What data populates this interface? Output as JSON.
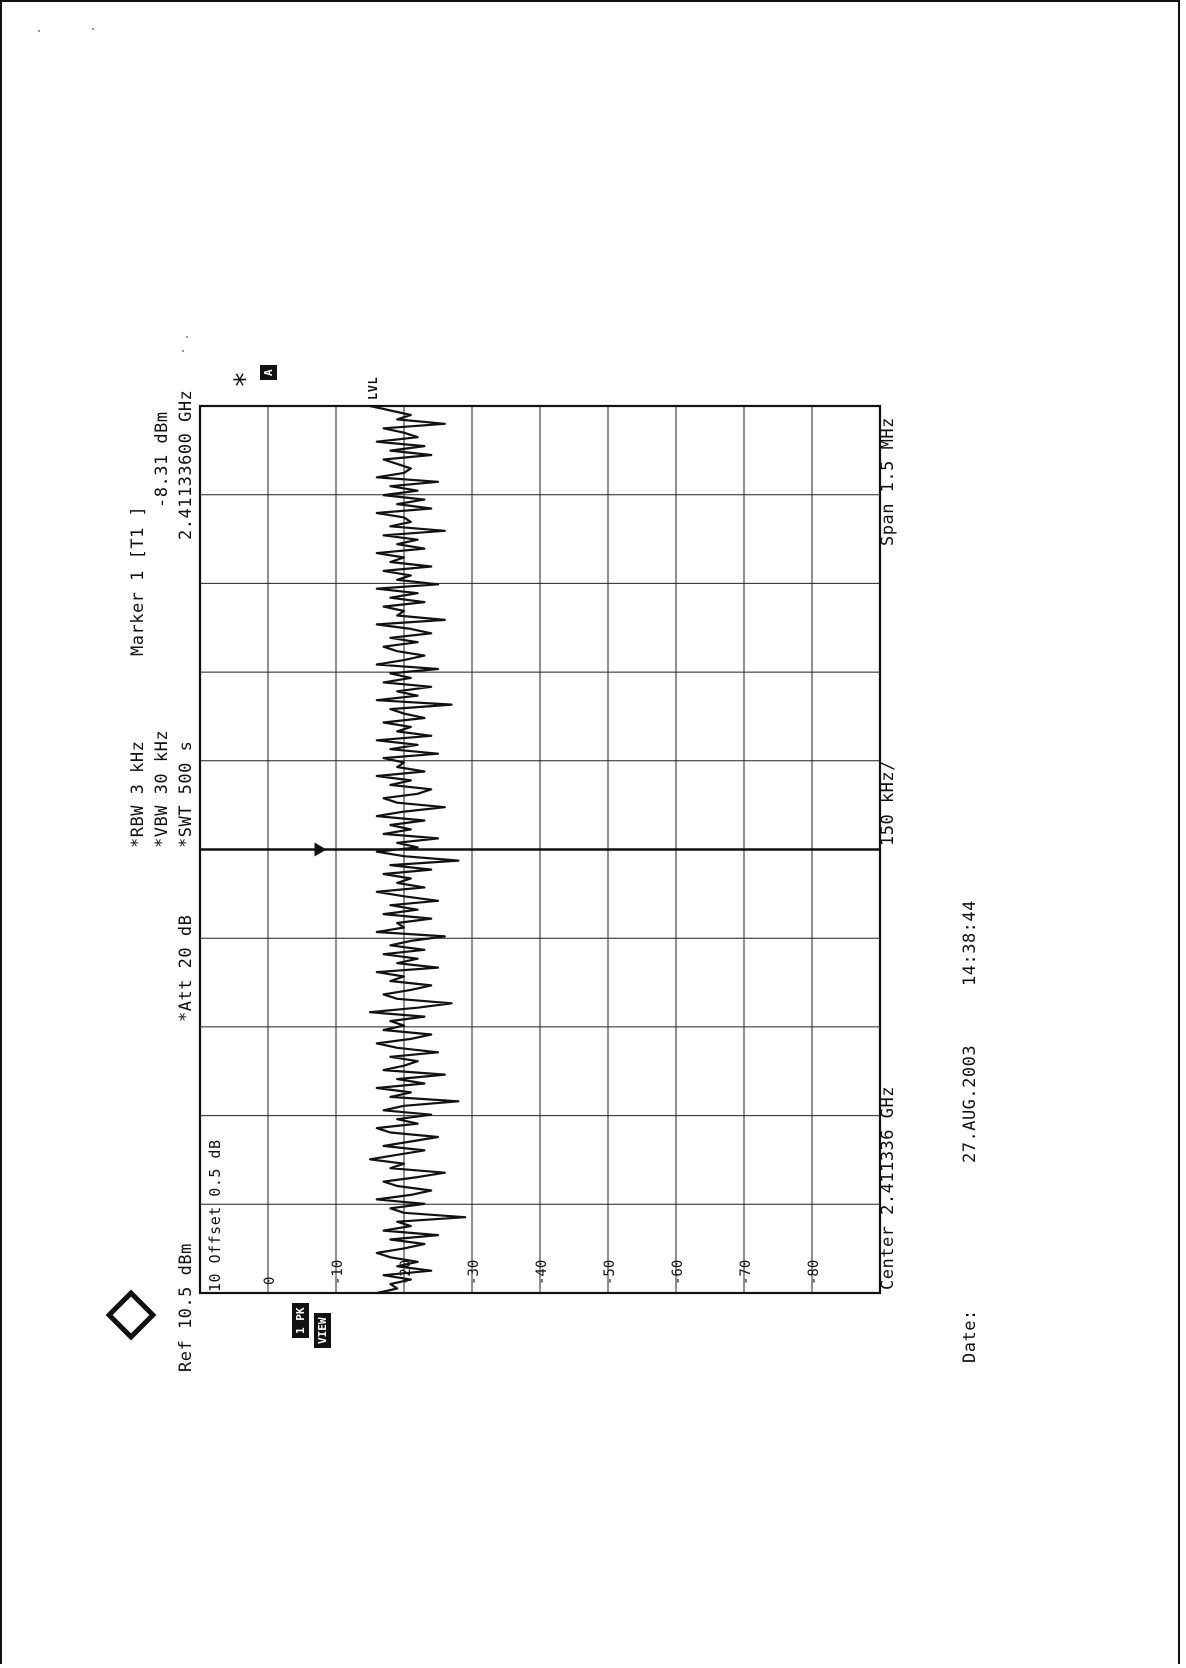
{
  "header": {
    "rbw": "*RBW 3 kHz",
    "vbw": "*VBW 30 kHz",
    "swt": "*SWT 500 s",
    "ref": "Ref 10.5 dBm",
    "att": "*Att 20 dB",
    "offset": "10 Offset 0.5 dB",
    "marker_title": "Marker 1 [T1 ]",
    "marker_level": "-8.31 dBm",
    "marker_freq": "2.41133600 GHz"
  },
  "side_labels": {
    "a_box": "A",
    "lvl": "LVL",
    "star": "*",
    "pk": "1 PK",
    "view": "VIEW",
    "logo": "R&S"
  },
  "footer": {
    "center": "Center 2.411336 GHz",
    "per_div": "150 kHz/",
    "span": "Span 1.5 MHz",
    "date_label": "Date:",
    "date_value": "27.AUG.2003",
    "time_value": "14:38:44"
  },
  "chart_data": {
    "type": "line",
    "title": "",
    "xlabel": "",
    "ylabel": "",
    "x_center_ghz": 2.411336,
    "x_span_mhz": 1.5,
    "x_range_mhz": [
      -0.75,
      0.75
    ],
    "ylim": [
      -90,
      10
    ],
    "y_ticks": [
      0,
      -10,
      -20,
      -30,
      -40,
      -50,
      -60,
      -70,
      -80
    ],
    "y_tick_labels": [
      "0",
      "-10",
      "-20",
      "-30",
      "-40",
      "-50",
      "-60",
      "-70",
      "-80"
    ],
    "grid": true,
    "marker": {
      "label": "Marker 1 [T1 ]",
      "x_offset_mhz": 0.0,
      "y_dbm": -8.31
    },
    "series": [
      {
        "values": [
          -16,
          -19,
          -18,
          -21,
          -17,
          -24,
          -19,
          -22,
          -18,
          -16,
          -20,
          -23,
          -18,
          -25,
          -17,
          -21,
          -19,
          -29,
          -20,
          -18,
          -23,
          -16,
          -21,
          -24,
          -19,
          -17,
          -22,
          -26,
          -18,
          -20,
          -15,
          -19,
          -23,
          -17,
          -21,
          -25,
          -18,
          -16,
          -22,
          -19,
          -24,
          -17,
          -20,
          -28,
          -18,
          -21,
          -16,
          -23,
          -19,
          -26,
          -17,
          -20,
          -22,
          -18,
          -25,
          -19,
          -16,
          -21,
          -24,
          -17,
          -20,
          -18,
          -23,
          -15,
          -22,
          -27,
          -19,
          -17,
          -21,
          -24,
          -18,
          -20,
          -16,
          -25,
          -19,
          -22,
          -17,
          -23,
          -18,
          -21,
          -26,
          -16,
          -20,
          -19,
          -24,
          -17,
          -22,
          -18,
          -25,
          -20,
          -16,
          -23,
          -19,
          -21,
          -17,
          -24,
          -18,
          -28,
          -20,
          -16,
          -22,
          -19,
          -25,
          -17,
          -21,
          -18,
          -23,
          -16,
          -20,
          -26,
          -19,
          -17,
          -22,
          -24,
          -18,
          -21,
          -16,
          -23,
          -19,
          -20,
          -17,
          -25,
          -18,
          -22,
          -16,
          -24,
          -19,
          -21,
          -17,
          -23,
          -20,
          -18,
          -27,
          -16,
          -22,
          -19,
          -24,
          -17,
          -21,
          -18,
          -25,
          -16,
          -20,
          -23,
          -19,
          -17,
          -22,
          -18,
          -24,
          -21,
          -16,
          -26,
          -19,
          -20,
          -17,
          -23,
          -18,
          -22,
          -16,
          -25,
          -19,
          -21,
          -17,
          -24,
          -18,
          -20,
          -16,
          -23,
          -19,
          -22,
          -17,
          -26,
          -18,
          -21,
          -20,
          -16,
          -24,
          -19,
          -23,
          -17,
          -22,
          -18,
          -25,
          -16,
          -20,
          -21,
          -19,
          -17,
          -24,
          -18,
          -23,
          -16,
          -22,
          -20,
          -17,
          -26,
          -19,
          -21,
          -18,
          -15
        ]
      }
    ]
  }
}
